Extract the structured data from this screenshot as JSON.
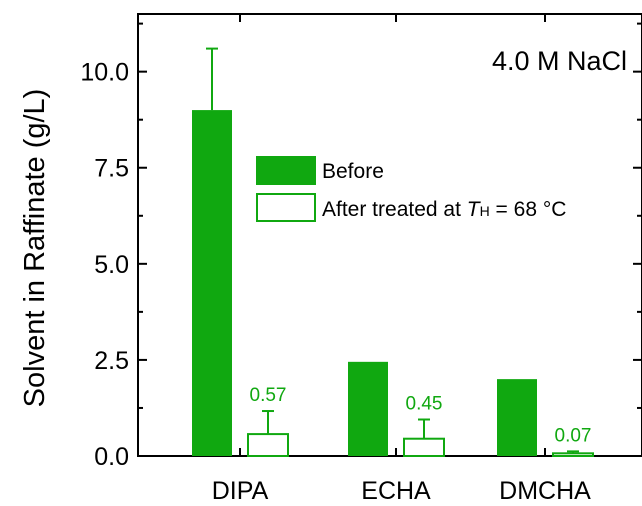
{
  "chart_data": {
    "type": "bar",
    "title": "",
    "annotation": "4.0 M NaCl",
    "xlabel": "",
    "ylabel": "Solvent in Raffinate (g/L)",
    "categories": [
      "DIPA",
      "ECHA",
      "DMCHA"
    ],
    "ylim": [
      0,
      11.5
    ],
    "yticks": [
      "0.0",
      "2.5",
      "5.0",
      "7.5",
      "10.0"
    ],
    "grid": false,
    "legend_position": "top-right",
    "series": [
      {
        "name": "Before",
        "style": "filled",
        "values": [
          9.0,
          2.45,
          2.0
        ],
        "errors": [
          1.6,
          0,
          0
        ]
      },
      {
        "name": "After treated at T_H = 68 °C",
        "style": "hollow",
        "values": [
          0.57,
          0.45,
          0.07
        ],
        "errors": [
          0.6,
          0.5,
          0.05
        ],
        "data_labels": [
          "0.57",
          "0.45",
          "0.07"
        ]
      }
    ],
    "legend": {
      "before_label": "Before",
      "after_prefix": "After treated at ",
      "after_var": "T",
      "after_sub": "H",
      "after_suffix": " = 68 °C"
    },
    "colors": {
      "series": "#10a810",
      "axis": "#000000"
    }
  }
}
